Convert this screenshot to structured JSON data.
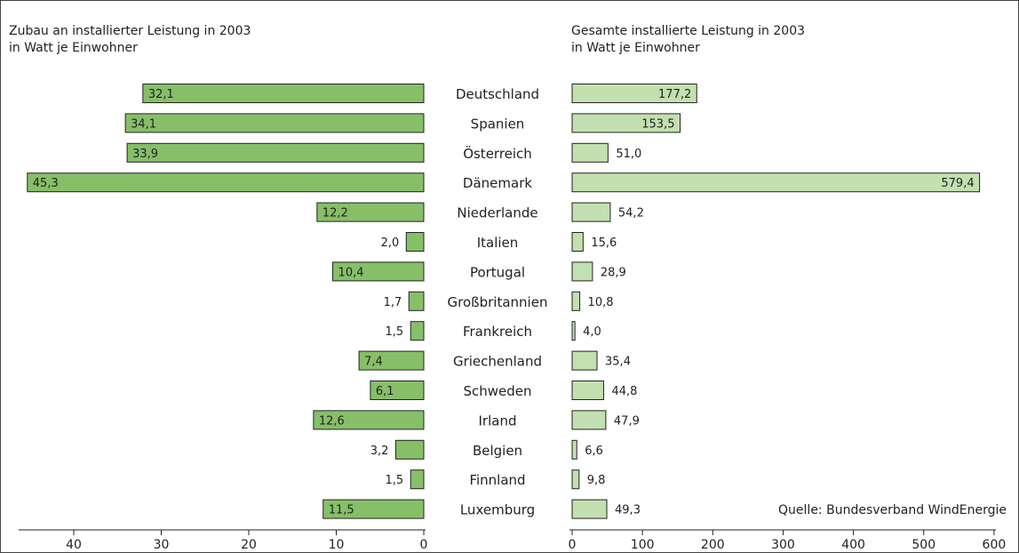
{
  "titles": {
    "left": "Zubau an installierter Leistung in 2003\nin Watt je Einwohner",
    "right": "Gesamte installierte Leistung in 2003\nin Watt je Einwohner"
  },
  "source": "Quelle: Bundesverband WindEnergie",
  "colors": {
    "left_bar": "#86bf68",
    "right_bar": "#c3e0b0"
  },
  "chart_data": [
    {
      "type": "bar",
      "orientation": "horizontal",
      "direction": "right-to-left",
      "title": "Zubau an installierter Leistung in 2003\nin Watt je Einwohner",
      "categories": [
        "Deutschland",
        "Spanien",
        "Österreich",
        "Dänemark",
        "Niederlande",
        "Italien",
        "Portugal",
        "Großbritannien",
        "Frankreich",
        "Griechenland",
        "Schweden",
        "Irland",
        "Belgien",
        "Finnland",
        "Luxemburg"
      ],
      "values": [
        32.1,
        34.1,
        33.9,
        45.3,
        12.2,
        2.0,
        10.4,
        1.7,
        1.5,
        7.4,
        6.1,
        12.6,
        3.2,
        1.5,
        11.5
      ],
      "labels": [
        "32,1",
        "34,1",
        "33,9",
        "45,3",
        "12,2",
        "2,0",
        "10,4",
        "1,7",
        "1,5",
        "7,4",
        "6,1",
        "12,6",
        "3,2",
        "1,5",
        "11,5"
      ],
      "xlim": [
        0,
        45.3
      ],
      "ticks": [
        0,
        10,
        20,
        30,
        40
      ],
      "tick_labels": [
        "0",
        "10",
        "20",
        "30",
        "40"
      ],
      "grid": false
    },
    {
      "type": "bar",
      "orientation": "horizontal",
      "direction": "left-to-right",
      "title": "Gesamte installierte Leistung in 2003\nin Watt je Einwohner",
      "categories": [
        "Deutschland",
        "Spanien",
        "Österreich",
        "Dänemark",
        "Niederlande",
        "Italien",
        "Portugal",
        "Großbritannien",
        "Frankreich",
        "Griechenland",
        "Schweden",
        "Irland",
        "Belgien",
        "Finnland",
        "Luxemburg"
      ],
      "values": [
        177.2,
        153.5,
        51.0,
        579.4,
        54.2,
        15.6,
        28.9,
        10.8,
        4.0,
        35.4,
        44.8,
        47.9,
        6.6,
        9.8,
        49.3
      ],
      "labels": [
        "177,2",
        "153,5",
        "51,0",
        "579,4",
        "54,2",
        "15,6",
        "28,9",
        "10,8",
        "4,0",
        "35,4",
        "44,8",
        "47,9",
        "6,6",
        "9,8",
        "49,3"
      ],
      "xlim": [
        0,
        600
      ],
      "ticks": [
        0,
        100,
        200,
        300,
        400,
        500,
        600
      ],
      "tick_labels": [
        "0",
        "100",
        "200",
        "300",
        "400",
        "500",
        "600"
      ],
      "grid": false
    }
  ]
}
